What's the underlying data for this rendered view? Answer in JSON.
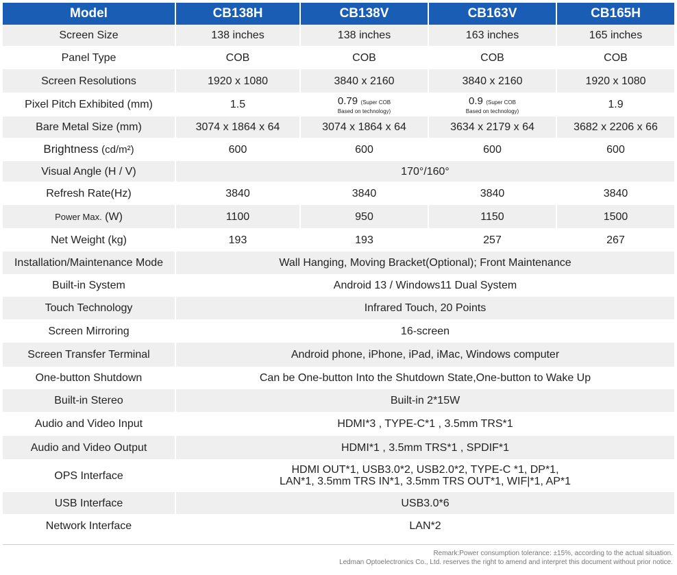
{
  "header": {
    "model_label": "Model",
    "models": [
      "CB138H",
      "CB138V",
      "CB163V",
      "CB165H"
    ]
  },
  "rows": {
    "screen_size": {
      "label": "Screen Size",
      "values": [
        "138 inches",
        "138 inches",
        "163 inches",
        "165 inches"
      ]
    },
    "panel_type": {
      "label": "Panel Type",
      "values": [
        "COB",
        "COB",
        "COB",
        "COB"
      ]
    },
    "resolution": {
      "label": "Screen Resolutions",
      "values": [
        "1920 x 1080",
        "3840 x 2160",
        "3840 x 2160",
        "1920 x 1080"
      ]
    },
    "pixel_pitch": {
      "label": "Pixel Pitch Exhibited (mm)",
      "v1": "1.5",
      "v2_main": "0.79",
      "v2_sup": "(Super COB",
      "v2_note": "Based on technology)",
      "v3_main": "0.9",
      "v3_sup": "(Super COB",
      "v3_note": "Based on technology)",
      "v4": "1.9"
    },
    "bare_metal": {
      "label": "Bare Metal Size (mm)",
      "values": [
        "3074 x 1864 x 64",
        "3074 x 1864 x 64",
        "3634 x 2179 x 64",
        "3682 x 2206 x 66"
      ]
    },
    "brightness": {
      "label_main": "Brightness",
      "label_unit": "(cd/m²)",
      "values": [
        "600",
        "600",
        "600",
        "600"
      ]
    },
    "visual_angle": {
      "label": "Visual Angle (H / V)",
      "value": "170°/160°"
    },
    "refresh_rate": {
      "label": "Refresh Rate(Hz)",
      "values": [
        "3840",
        "3840",
        "3840",
        "3840"
      ]
    },
    "power_max": {
      "label_main": "Power Max.",
      "label_unit": "(W)",
      "values": [
        "1100",
        "950",
        "1150",
        "1500"
      ]
    },
    "net_weight": {
      "label": "Net Weight (kg)",
      "values": [
        "193",
        "193",
        "257",
        "267"
      ]
    },
    "installation": {
      "label": "Installation/Maintenance Mode",
      "value": "Wall Hanging, Moving Bracket(Optional); Front Maintenance"
    },
    "builtin_system": {
      "label": "Built-in System",
      "value": "Android 13 / Windows11 Dual System"
    },
    "touch": {
      "label": "Touch Technology",
      "value": "Infrared Touch, 20 Points"
    },
    "mirroring": {
      "label": "Screen Mirroring",
      "value": "16-screen"
    },
    "transfer_terminal": {
      "label": "Screen Transfer Terminal",
      "value": "Android phone, iPhone, iPad, iMac, Windows computer"
    },
    "shutdown": {
      "label": "One-button Shutdown",
      "value": "Can be One-button Into the Shutdown State,One-button to Wake Up"
    },
    "stereo": {
      "label": "Built-in Stereo",
      "value": "Built-in 2*15W"
    },
    "av_input": {
      "label": "Audio and Video Input",
      "value": "HDMI*3 , TYPE-C*1 , 3.5mm TRS*1"
    },
    "av_output": {
      "label": "Audio and Video Output",
      "value": "HDMI*1 , 3.5mm TRS*1 , SPDIF*1"
    },
    "ops": {
      "label": "OPS Interface",
      "line1": "HDMI OUT*1, USB3.0*2, USB2.0*2, TYPE-C *1, DP*1,",
      "line2": "LAN*1, 3.5mm TRS IN*1, 3.5mm TRS OUT*1, WIF|*1, AP*1"
    },
    "usb": {
      "label": "USB Interface",
      "value": "USB3.0*6"
    },
    "network": {
      "label": "Network Interface",
      "value": "LAN*2"
    }
  },
  "footer": {
    "remark": "Remark:Power consumption tolerance: ±15%, according to the actual situation.",
    "disclaimer": "Ledman Optoelectronics Co., Ltd. reserves the right to amend and interpret this document without prior notice."
  },
  "colors": {
    "header_bg": "#1a5db5",
    "stripe": "#efefef"
  }
}
